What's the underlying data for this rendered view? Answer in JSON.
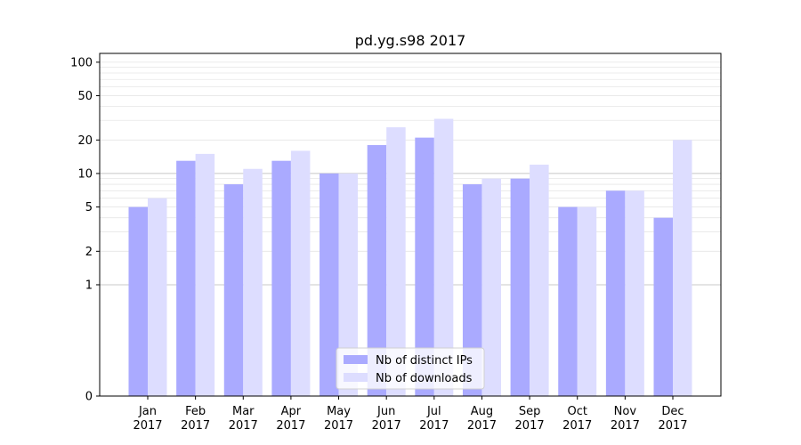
{
  "chart_data": {
    "type": "bar",
    "title": "pd.yg.s98 2017",
    "xlabel": "",
    "ylabel": "",
    "y_scale": "symlog",
    "ylim": [
      0,
      120
    ],
    "y_ticks": [
      0,
      1,
      2,
      5,
      10,
      20,
      50,
      100
    ],
    "categories": [
      [
        "Jan",
        "2017"
      ],
      [
        "Feb",
        "2017"
      ],
      [
        "Mar",
        "2017"
      ],
      [
        "Apr",
        "2017"
      ],
      [
        "May",
        "2017"
      ],
      [
        "Jun",
        "2017"
      ],
      [
        "Jul",
        "2017"
      ],
      [
        "Aug",
        "2017"
      ],
      [
        "Sep",
        "2017"
      ],
      [
        "Oct",
        "2017"
      ],
      [
        "Nov",
        "2017"
      ],
      [
        "Dec",
        "2017"
      ]
    ],
    "series": [
      {
        "name": "Nb of distinct IPs",
        "color": "#aaaaff",
        "values": [
          5,
          13,
          8,
          13,
          10,
          18,
          21,
          8,
          9,
          5,
          7,
          4
        ]
      },
      {
        "name": "Nb of downloads",
        "color": "#ddddff",
        "values": [
          6,
          15,
          11,
          16,
          10,
          26,
          31,
          9,
          12,
          5,
          7,
          20
        ]
      }
    ],
    "grid": true,
    "legend_position": "bottom-center"
  }
}
